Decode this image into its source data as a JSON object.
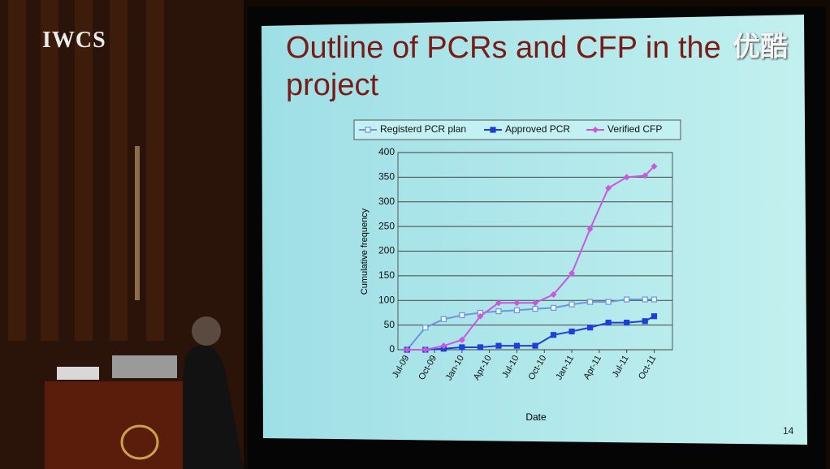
{
  "overlay": {
    "logo": "IWCS",
    "watermark": "优酷"
  },
  "page_number": 14,
  "chart_data": {
    "type": "line",
    "title": "Outline of PCRs and CFP in the project",
    "x_label": "Date",
    "y_label": "Cumulative frequency",
    "x": [
      "Jul-09",
      "Sep-09",
      "Nov-09",
      "Jan-10",
      "Mar-10",
      "May-10",
      "Jul-10",
      "Sep-10",
      "Nov-10",
      "Jan-11",
      "Mar-11",
      "May-11",
      "Jul-11",
      "Sep-11",
      "Oct-11"
    ],
    "xlim": [
      "Jun-09",
      "Dec-11"
    ],
    "xticks": [
      "Jul-09",
      "Oct-09",
      "Jan-10",
      "Apr-10",
      "Jul-10",
      "Oct-10",
      "Jan-11",
      "Apr-11",
      "Jul-11",
      "Oct-11"
    ],
    "ylim": [
      0,
      400
    ],
    "yticks": [
      0,
      50,
      100,
      150,
      200,
      250,
      300,
      350,
      400
    ],
    "grid": true,
    "series": [
      {
        "name": "Registerd PCR plan",
        "color": "#6f93dc",
        "marker": "square-open",
        "values": [
          0,
          45,
          62,
          70,
          75,
          78,
          80,
          83,
          85,
          92,
          97,
          97,
          102,
          102,
          102
        ]
      },
      {
        "name": "Approved PCR",
        "color": "#1f3fd6",
        "marker": "square",
        "values": [
          0,
          0,
          2,
          5,
          5,
          8,
          8,
          8,
          30,
          37,
          45,
          55,
          55,
          58,
          68
        ]
      },
      {
        "name": "Verified CFP",
        "color": "#c957e0",
        "marker": "diamond",
        "values": [
          0,
          0,
          8,
          20,
          68,
          95,
          95,
          95,
          112,
          155,
          245,
          328,
          350,
          353,
          372
        ]
      }
    ]
  }
}
